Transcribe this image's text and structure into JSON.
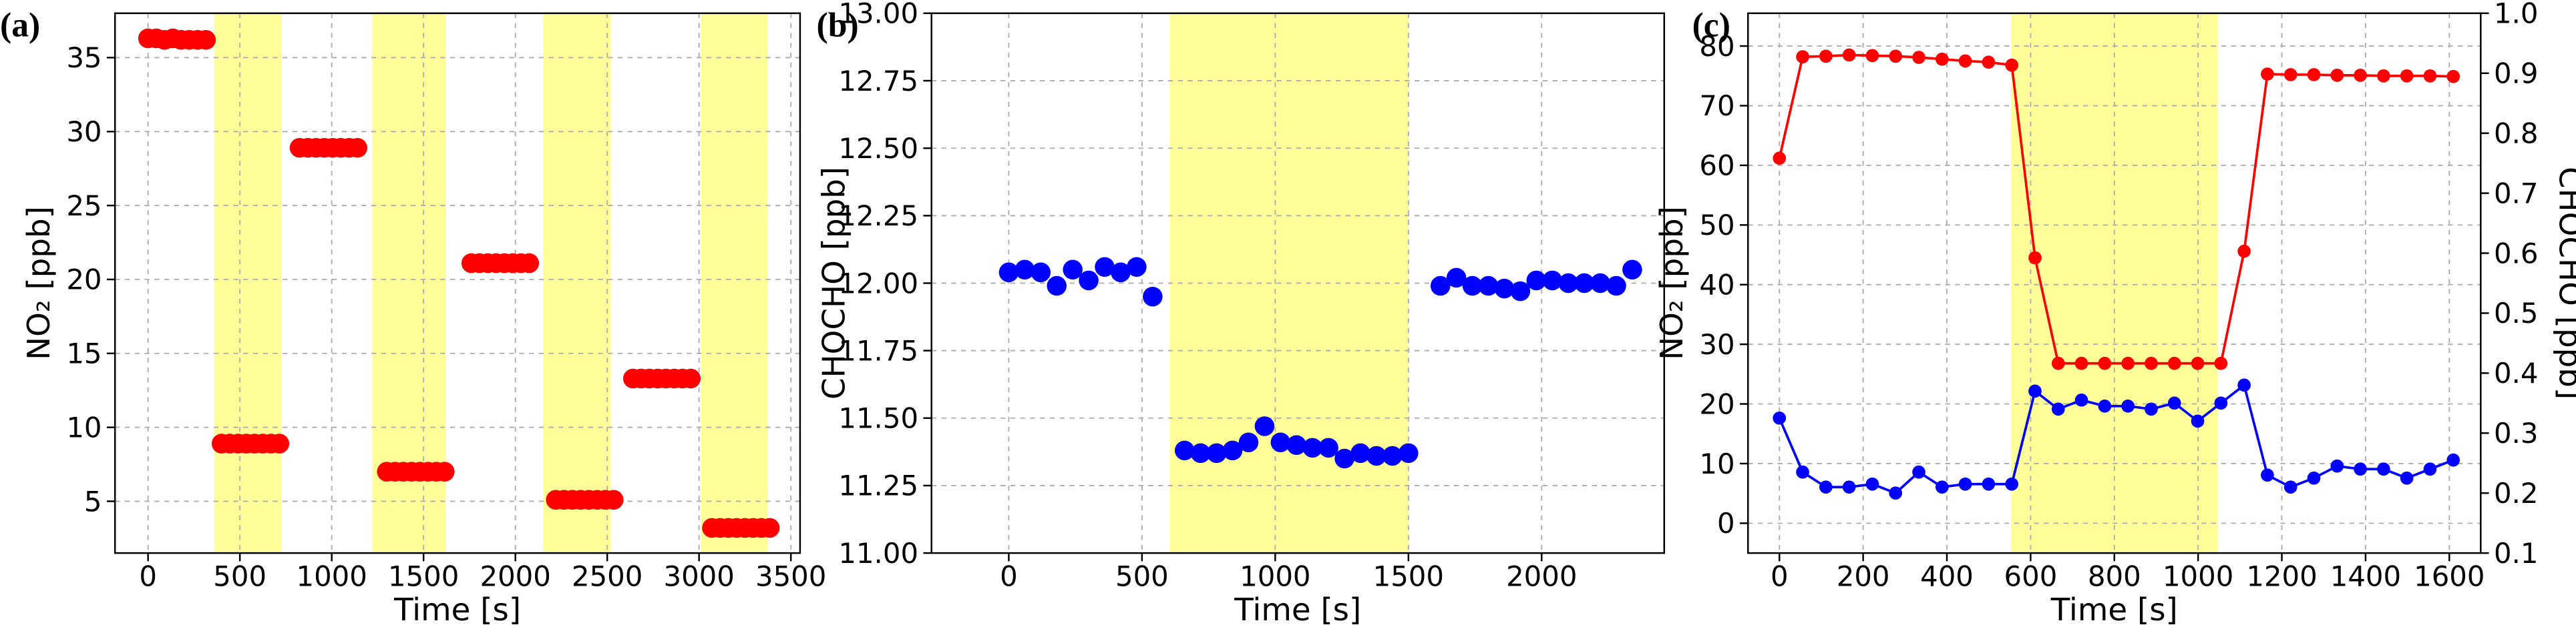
{
  "chart_data": [
    {
      "type": "scatter",
      "label": "(a)",
      "xlabel": "Time [s]",
      "ylabel": "NO₂ [ppb]",
      "xlim": [
        -180,
        3550
      ],
      "ylim": [
        1.5,
        38
      ],
      "xticks": [
        0,
        500,
        1000,
        1500,
        2000,
        2500,
        3000,
        3500
      ],
      "yticks": [
        5,
        10,
        15,
        20,
        25,
        30,
        35
      ],
      "grid": true,
      "color": "#ff0000",
      "span_color": "#ffff99",
      "spans": [
        [
          360,
          725
        ],
        [
          1220,
          1620
        ],
        [
          2150,
          2520
        ],
        [
          3010,
          3375
        ]
      ],
      "x": [
        0,
        45,
        90,
        135,
        180,
        225,
        270,
        315,
        400,
        445,
        490,
        535,
        580,
        625,
        670,
        715,
        825,
        870,
        915,
        960,
        1005,
        1050,
        1095,
        1140,
        1300,
        1345,
        1390,
        1435,
        1480,
        1525,
        1570,
        1615,
        1760,
        1805,
        1850,
        1895,
        1940,
        1985,
        2030,
        2075,
        2220,
        2265,
        2310,
        2355,
        2400,
        2445,
        2490,
        2535,
        2640,
        2685,
        2730,
        2775,
        2820,
        2865,
        2910,
        2955,
        3070,
        3115,
        3160,
        3205,
        3250,
        3295,
        3340,
        3385
      ],
      "values": [
        36.3,
        36.3,
        36.2,
        36.3,
        36.2,
        36.2,
        36.2,
        36.2,
        8.9,
        8.9,
        8.9,
        8.9,
        8.9,
        8.9,
        8.9,
        8.9,
        28.9,
        28.9,
        28.9,
        28.9,
        28.9,
        28.9,
        28.9,
        28.9,
        7.0,
        7.0,
        7.0,
        7.0,
        7.0,
        7.0,
        7.0,
        7.0,
        21.1,
        21.1,
        21.1,
        21.1,
        21.1,
        21.1,
        21.1,
        21.1,
        5.1,
        5.1,
        5.1,
        5.1,
        5.1,
        5.1,
        5.1,
        5.1,
        13.3,
        13.3,
        13.3,
        13.3,
        13.3,
        13.3,
        13.3,
        13.3,
        3.2,
        3.2,
        3.2,
        3.2,
        3.2,
        3.2,
        3.2,
        3.2
      ]
    },
    {
      "type": "scatter",
      "label": "(b)",
      "xlabel": "Time [s]",
      "ylabel": "CHOCHO [ppb]",
      "xlim": [
        -290,
        2460
      ],
      "ylim": [
        11,
        13
      ],
      "xticks": [
        0,
        500,
        1000,
        1500,
        2000
      ],
      "yticks": [
        {
          "value": 11,
          "label": "11.00"
        },
        11.25,
        {
          "value": 11.5,
          "label": "11.50"
        },
        11.75,
        {
          "value": 12,
          "label": "12.00"
        },
        12.25,
        {
          "value": 12.5,
          "label": "12.50"
        },
        12.75,
        {
          "value": 13,
          "label": "13.00"
        }
      ],
      "grid": true,
      "color": "#0000ff",
      "span_color": "#ffff99",
      "spans": [
        [
          605,
          1500
        ]
      ],
      "x": [
        0,
        60,
        120,
        180,
        240,
        300,
        360,
        420,
        480,
        540,
        660,
        720,
        780,
        840,
        900,
        960,
        1020,
        1080,
        1140,
        1200,
        1260,
        1320,
        1380,
        1440,
        1500,
        1620,
        1680,
        1740,
        1800,
        1860,
        1920,
        1980,
        2040,
        2100,
        2160,
        2220,
        2280,
        2340
      ],
      "values": [
        12.04,
        12.05,
        12.04,
        11.99,
        12.05,
        12.01,
        12.06,
        12.04,
        12.06,
        11.95,
        11.38,
        11.37,
        11.37,
        11.38,
        11.41,
        11.47,
        11.41,
        11.4,
        11.39,
        11.39,
        11.35,
        11.37,
        11.36,
        11.36,
        11.37,
        11.99,
        12.02,
        11.99,
        11.99,
        11.98,
        11.97,
        12.01,
        12.01,
        12.0,
        12.0,
        12.0,
        11.99,
        12.05
      ]
    },
    {
      "type": "line",
      "label": "(c)",
      "xlabel": "Time [s]",
      "ylabel": "NO₂ [ppb]",
      "y2label": "CHOCHO [ppb]",
      "ylabel_color": "#ff0000",
      "y2label_color": "#0000ff",
      "xlim": [
        -75,
        1675
      ],
      "ylim": [
        -5,
        85.5
      ],
      "y2lim": [
        0.1,
        1.0
      ],
      "xticks": [
        0,
        200,
        400,
        600,
        800,
        1000,
        1200,
        1400,
        1600
      ],
      "yticks": [
        0,
        10,
        20,
        30,
        40,
        50,
        60,
        70,
        80
      ],
      "y2ticks": [
        0.1,
        0.2,
        0.3,
        0.4,
        0.5,
        0.6,
        0.7,
        0.8,
        0.9,
        {
          "value": 1.0,
          "label": "1.0"
        }
      ],
      "grid": true,
      "span_color": "#ffff99",
      "spans": [
        [
          553,
          1047
        ]
      ],
      "x": [
        0,
        55.5,
        111,
        166.5,
        222,
        277.5,
        333,
        388.5,
        444,
        499.5,
        555,
        610.5,
        666,
        721.5,
        777,
        832.5,
        888,
        943.5,
        999,
        1054.5,
        1110,
        1165.5,
        1221,
        1276.5,
        1332,
        1387.5,
        1443,
        1498.5,
        1554,
        1609.5
      ],
      "series": [
        {
          "color": "#ff0000",
          "values": [
            61.2,
            78.2,
            78.3,
            78.5,
            78.4,
            78.3,
            78.1,
            77.8,
            77.5,
            77.3,
            76.8,
            44.5,
            26.8,
            26.8,
            26.8,
            26.8,
            26.8,
            26.8,
            26.8,
            26.8,
            45.6,
            75.3,
            75.2,
            75.2,
            75.1,
            75.1,
            75.0,
            75.0,
            75.0,
            74.9
          ]
        },
        {
          "color": "#0000ff",
          "axis": "y2",
          "values": [
            0.325,
            0.235,
            0.21,
            0.21,
            0.215,
            0.2,
            0.235,
            0.21,
            0.215,
            0.215,
            0.215,
            0.37,
            0.34,
            0.355,
            0.345,
            0.345,
            0.34,
            0.35,
            0.32,
            0.35,
            0.38,
            0.23,
            0.21,
            0.225,
            0.245,
            0.24,
            0.24,
            0.225,
            0.24,
            0.255
          ]
        }
      ]
    }
  ]
}
